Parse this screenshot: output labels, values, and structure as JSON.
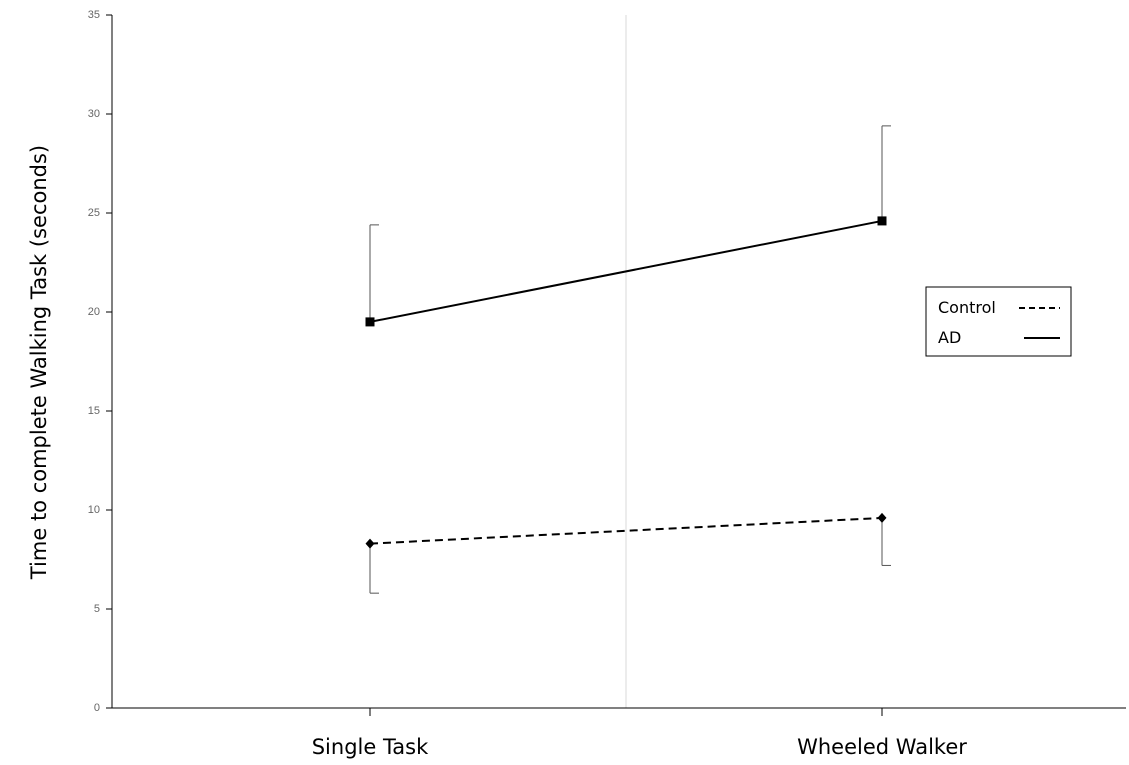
{
  "chart_data": {
    "type": "line",
    "title": "",
    "xlabel": "",
    "ylabel": "Time to complete Walking Task (seconds)",
    "categories": [
      "Single Task",
      "Wheeled Walker"
    ],
    "ylim": [
      0,
      35
    ],
    "yticks": [
      "0",
      "5",
      "10",
      "15",
      "20",
      "25",
      "30",
      "35"
    ],
    "grid": false,
    "legend_position": "right",
    "series": [
      {
        "name": "Control",
        "line_style": "dashed",
        "marker": "diamond",
        "color": "#000000",
        "values": [
          8.3,
          9.6
        ],
        "error_low": [
          5.8,
          7.2
        ]
      },
      {
        "name": "AD",
        "line_style": "solid",
        "marker": "square",
        "color": "#000000",
        "values": [
          19.5,
          24.6
        ],
        "error_high": [
          24.4,
          29.4
        ]
      }
    ]
  }
}
